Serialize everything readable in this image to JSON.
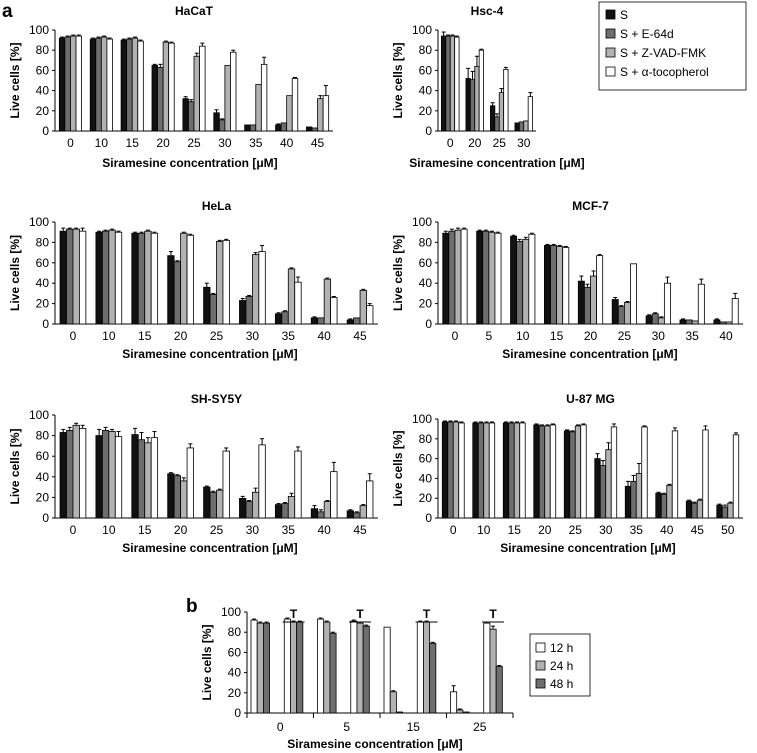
{
  "figure": {
    "panel_a": "a",
    "panel_b": "b"
  },
  "legend_a": {
    "entries": [
      {
        "label": "S",
        "color": "#111111"
      },
      {
        "label": "S + E-64d",
        "color": "#6e6e6e"
      },
      {
        "label": "S + Z-VAD-FMK",
        "color": "#b2b2b2"
      },
      {
        "label": "S + α-tocopherol",
        "color": "#ffffff"
      }
    ]
  },
  "legend_b": {
    "entries": [
      {
        "label": "12 h",
        "color": "#ffffff"
      },
      {
        "label": "24 h",
        "color": "#b2b2b2"
      },
      {
        "label": "48 h",
        "color": "#6e6e6e"
      }
    ]
  },
  "chart_data": [
    {
      "type": "bar",
      "title": "HaCaT",
      "xlabel": "Siramesine concentration [μM]",
      "ylabel": "Live cells [%]",
      "ylim": [
        0,
        100
      ],
      "yticks": [
        0,
        20,
        40,
        60,
        80,
        100
      ],
      "categories": [
        "0",
        "10",
        "15",
        "20",
        "25",
        "30",
        "35",
        "40",
        "45"
      ],
      "series": [
        {
          "name": "S",
          "values": [
            92,
            91,
            90,
            65,
            32,
            18,
            6,
            6,
            4
          ],
          "err": [
            1,
            1,
            1,
            1,
            2,
            3,
            0,
            1,
            0
          ]
        },
        {
          "name": "S + E-64d",
          "values": [
            93,
            92,
            91,
            63,
            29,
            11,
            6,
            8,
            3
          ],
          "err": [
            1,
            1,
            1,
            3,
            2,
            1,
            0,
            0,
            0
          ]
        },
        {
          "name": "S + Z-VAD-FMK",
          "values": [
            94,
            93,
            92,
            88,
            74,
            65,
            46,
            35,
            32
          ],
          "err": [
            1,
            1,
            1,
            1,
            3,
            0,
            0,
            0,
            3
          ]
        },
        {
          "name": "S + α-tocopherol",
          "values": [
            94,
            91,
            89,
            87,
            84,
            78,
            66,
            52,
            35
          ],
          "err": [
            1,
            1,
            1,
            1,
            3,
            2,
            7,
            1,
            10
          ]
        }
      ]
    },
    {
      "type": "bar",
      "title": "Hsc-4",
      "xlabel": "Siramesine concentration [μM]",
      "ylabel": "Live cells [%]",
      "ylim": [
        0,
        100
      ],
      "yticks": [
        0,
        20,
        40,
        60,
        80,
        100
      ],
      "categories": [
        "0",
        "20",
        "25",
        "30"
      ],
      "series": [
        {
          "name": "S",
          "values": [
            94,
            52,
            25,
            8
          ],
          "err": [
            4,
            10,
            3,
            0
          ]
        },
        {
          "name": "S + E-64d",
          "values": [
            94,
            51,
            14,
            9
          ],
          "err": [
            1,
            8,
            3,
            0
          ]
        },
        {
          "name": "S + Z-VAD-FMK",
          "values": [
            94,
            64,
            38,
            10
          ],
          "err": [
            1,
            10,
            4,
            0
          ]
        },
        {
          "name": "S + α-tocopherol",
          "values": [
            93,
            80,
            61,
            34
          ],
          "err": [
            1,
            1,
            2,
            4
          ]
        }
      ]
    },
    {
      "type": "bar",
      "title": "HeLa",
      "xlabel": "Siramesine concentration [μM]",
      "ylabel": "Live cells [%]",
      "ylim": [
        0,
        100
      ],
      "yticks": [
        0,
        20,
        40,
        60,
        80,
        100
      ],
      "categories": [
        "0",
        "10",
        "15",
        "20",
        "25",
        "30",
        "35",
        "40",
        "45"
      ],
      "series": [
        {
          "name": "S",
          "values": [
            91,
            90,
            89,
            67,
            36,
            23,
            10,
            6,
            4
          ],
          "err": [
            3,
            1,
            1,
            4,
            4,
            2,
            1,
            1,
            1
          ]
        },
        {
          "name": "S + E-64d",
          "values": [
            93,
            91,
            89,
            61,
            29,
            27,
            12,
            6,
            6
          ],
          "err": [
            1,
            1,
            1,
            1,
            1,
            1,
            1,
            0,
            0
          ]
        },
        {
          "name": "S + Z-VAD-FMK",
          "values": [
            93,
            92,
            91,
            89,
            81,
            68,
            54,
            44,
            33
          ],
          "err": [
            1,
            1,
            1,
            1,
            1,
            2,
            1,
            1,
            1
          ]
        },
        {
          "name": "S + α-tocopherol",
          "values": [
            91,
            90,
            89,
            87,
            82,
            71,
            41,
            26,
            18
          ],
          "err": [
            3,
            1,
            1,
            1,
            1,
            6,
            5,
            1,
            2
          ]
        }
      ]
    },
    {
      "type": "bar",
      "title": "MCF-7",
      "xlabel": "Siramesine concentration [μM]",
      "ylabel": "Live cells [%]",
      "ylim": [
        0,
        100
      ],
      "yticks": [
        0,
        20,
        40,
        60,
        80,
        100
      ],
      "categories": [
        "0",
        "5",
        "10",
        "15",
        "20",
        "25",
        "30",
        "35",
        "40"
      ],
      "series": [
        {
          "name": "S",
          "values": [
            89,
            91,
            86,
            77,
            42,
            24,
            8,
            4,
            4
          ],
          "err": [
            2,
            1,
            1,
            1,
            5,
            2,
            1,
            1,
            1
          ]
        },
        {
          "name": "S + E-64d",
          "values": [
            91,
            91,
            81,
            77,
            36,
            17,
            10,
            4,
            2
          ],
          "err": [
            2,
            1,
            2,
            1,
            3,
            1,
            1,
            0,
            0
          ]
        },
        {
          "name": "S + Z-VAD-FMK",
          "values": [
            92,
            90,
            83,
            76,
            47,
            21,
            6,
            3,
            2
          ],
          "err": [
            2,
            1,
            2,
            1,
            5,
            1,
            1,
            0,
            0
          ]
        },
        {
          "name": "S + α-tocopherol",
          "values": [
            93,
            89,
            88,
            75,
            67,
            59,
            40,
            39,
            25
          ],
          "err": [
            1,
            1,
            1,
            1,
            1,
            0,
            6,
            5,
            5
          ]
        }
      ]
    },
    {
      "type": "bar",
      "title": "SH-SY5Y",
      "xlabel": "Siramesine concentration [μM]",
      "ylabel": "Live cells [%]",
      "ylim": [
        0,
        100
      ],
      "yticks": [
        0,
        20,
        40,
        60,
        80,
        100
      ],
      "categories": [
        "0",
        "10",
        "15",
        "20",
        "25",
        "30",
        "35",
        "40",
        "45"
      ],
      "series": [
        {
          "name": "S",
          "values": [
            83,
            80,
            81,
            43,
            30,
            19,
            13,
            9,
            7
          ],
          "err": [
            3,
            6,
            6,
            1,
            1,
            2,
            1,
            3,
            1
          ]
        },
        {
          "name": "S + E-64d",
          "values": [
            85,
            85,
            76,
            41,
            25,
            16,
            14,
            6,
            5
          ],
          "err": [
            3,
            3,
            7,
            1,
            1,
            1,
            1,
            2,
            1
          ]
        },
        {
          "name": "S + Z-VAD-FMK",
          "values": [
            90,
            84,
            73,
            36,
            27,
            25,
            21,
            16,
            12
          ],
          "err": [
            2,
            2,
            5,
            3,
            1,
            4,
            3,
            1,
            1
          ]
        },
        {
          "name": "S + α-tocopherol",
          "values": [
            87,
            79,
            78,
            68,
            65,
            71,
            65,
            45,
            36
          ],
          "err": [
            3,
            5,
            6,
            4,
            3,
            6,
            4,
            9,
            7
          ]
        }
      ]
    },
    {
      "type": "bar",
      "title": "U-87 MG",
      "xlabel": "Siramesine concentration [μM]",
      "ylabel": "Live cells [%]",
      "ylim": [
        0,
        100
      ],
      "yticks": [
        0,
        20,
        40,
        60,
        80,
        100
      ],
      "categories": [
        "0",
        "10",
        "15",
        "20",
        "25",
        "30",
        "35",
        "40",
        "45",
        "50"
      ],
      "series": [
        {
          "name": "S",
          "values": [
            97,
            96,
            96,
            94,
            88,
            60,
            32,
            25,
            17,
            13
          ],
          "err": [
            1,
            1,
            1,
            1,
            1,
            5,
            5,
            1,
            1,
            1
          ]
        },
        {
          "name": "S + E-64d",
          "values": [
            97,
            96,
            96,
            93,
            87,
            53,
            37,
            24,
            15,
            11
          ],
          "err": [
            1,
            1,
            1,
            1,
            1,
            5,
            6,
            1,
            1,
            2
          ]
        },
        {
          "name": "S + Z-VAD-FMK",
          "values": [
            97,
            96,
            96,
            93,
            93,
            69,
            45,
            33,
            18,
            15
          ],
          "err": [
            1,
            1,
            1,
            1,
            1,
            7,
            10,
            1,
            1,
            1
          ]
        },
        {
          "name": "S + α-tocopherol",
          "values": [
            96,
            96,
            96,
            94,
            94,
            92,
            92,
            88,
            89,
            84
          ],
          "err": [
            1,
            1,
            1,
            1,
            1,
            3,
            1,
            3,
            4,
            2
          ]
        }
      ]
    },
    {
      "type": "bar",
      "title": "",
      "xlabel": "Siramesine concentration [μM]",
      "ylabel": "Live cells [%]",
      "ylim": [
        0,
        100
      ],
      "yticks": [
        0,
        20,
        40,
        60,
        80,
        100
      ],
      "categories": [
        "0",
        "5",
        "15",
        "25"
      ],
      "group_headers": [
        "",
        "T"
      ],
      "subgroups": [
        {
          "category": "0",
          "groups": [
            {
              "marker": "",
              "values": [
                92,
                89,
                89
              ],
              "err": [
                1,
                1,
                1
              ]
            },
            {
              "marker": "T",
              "values": [
                93,
                90,
                90
              ],
              "err": [
                1,
                1,
                1
              ]
            }
          ]
        },
        {
          "category": "5",
          "groups": [
            {
              "marker": "",
              "values": [
                93,
                90,
                79
              ],
              "err": [
                1,
                1,
                1
              ]
            },
            {
              "marker": "T",
              "values": [
                91,
                89,
                86
              ],
              "err": [
                1,
                1,
                1
              ]
            }
          ]
        },
        {
          "category": "15",
          "groups": [
            {
              "marker": "",
              "values": [
                85,
                21,
                1
              ],
              "err": [
                0,
                1,
                0
              ]
            },
            {
              "marker": "T",
              "values": [
                90,
                90,
                69
              ],
              "err": [
                1,
                1,
                1
              ]
            }
          ]
        },
        {
          "category": "25",
          "groups": [
            {
              "marker": "",
              "values": [
                21,
                3,
                1
              ],
              "err": [
                6,
                1,
                0
              ]
            },
            {
              "marker": "T",
              "values": [
                89,
                83,
                46
              ],
              "err": [
                1,
                3,
                1
              ]
            }
          ]
        }
      ],
      "series_names": [
        "12 h",
        "24 h",
        "48 h"
      ]
    }
  ]
}
